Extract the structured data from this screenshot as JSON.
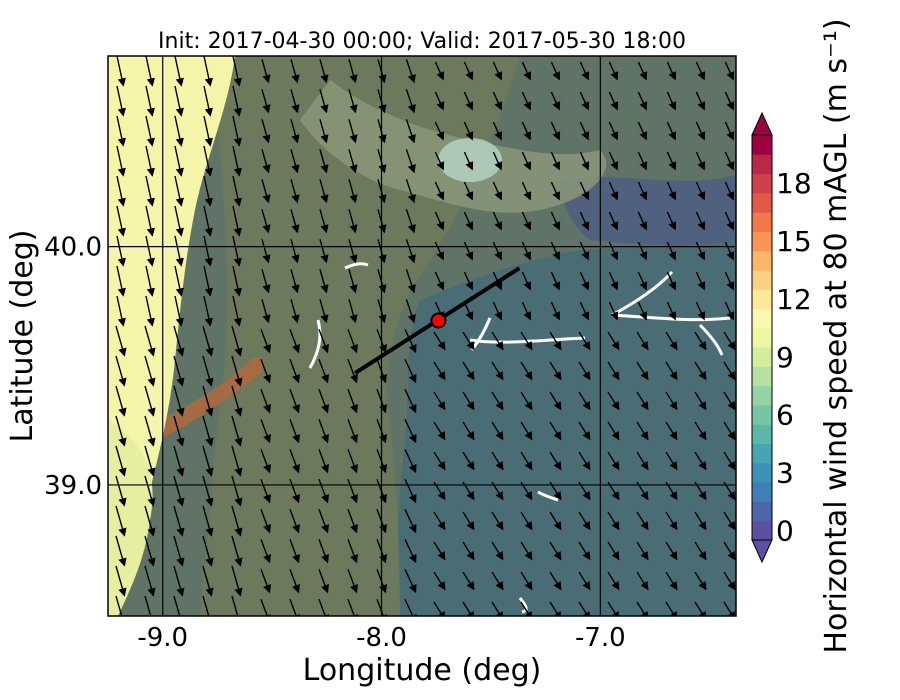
{
  "title": "Init: 2017-04-30 00:00; Valid: 2017-05-30 18:00",
  "xlabel": "Longitude (deg)",
  "ylabel": "Latitude (deg)",
  "colorbar_label": "Horizontal wind speed at 80 mAGL (m s⁻¹)",
  "lon_ticks": [
    {
      "value": -9.0,
      "label": "-9.0"
    },
    {
      "value": -8.0,
      "label": "-8.0"
    },
    {
      "value": -7.0,
      "label": "-7.0"
    }
  ],
  "lat_ticks": [
    {
      "value": 40.0,
      "label": "40.0"
    },
    {
      "value": 39.0,
      "label": "39.0"
    }
  ],
  "extent": {
    "lon": [
      -9.25,
      -6.38
    ],
    "lat": [
      38.45,
      40.8
    ]
  },
  "colorbar": {
    "range": [
      0,
      20
    ],
    "step": 1,
    "ticks": [
      0,
      3,
      6,
      9,
      12,
      15,
      18
    ],
    "colors": [
      "#5e4fa2",
      "#4d65ad",
      "#3f7fb8",
      "#3b92b9",
      "#45a6b0",
      "#5cb7a7",
      "#75c6a4",
      "#95d3a4",
      "#b4e0a2",
      "#d2ed9b",
      "#ebf7a3",
      "#fbf8b0",
      "#fee89a",
      "#fdd182",
      "#fdb568",
      "#f99656",
      "#f2774b",
      "#e25a47",
      "#d0404b",
      "#b82848",
      "#9e0142"
    ],
    "extend": "both"
  },
  "cross_section": {
    "start": [
      -8.12,
      39.47
    ],
    "end": [
      -7.37,
      39.91
    ]
  },
  "site_marker": {
    "lon": -7.74,
    "lat": 39.69,
    "color": "#ff0000"
  },
  "wind_field": {
    "representation": "arrows",
    "general_direction": "southward"
  }
}
